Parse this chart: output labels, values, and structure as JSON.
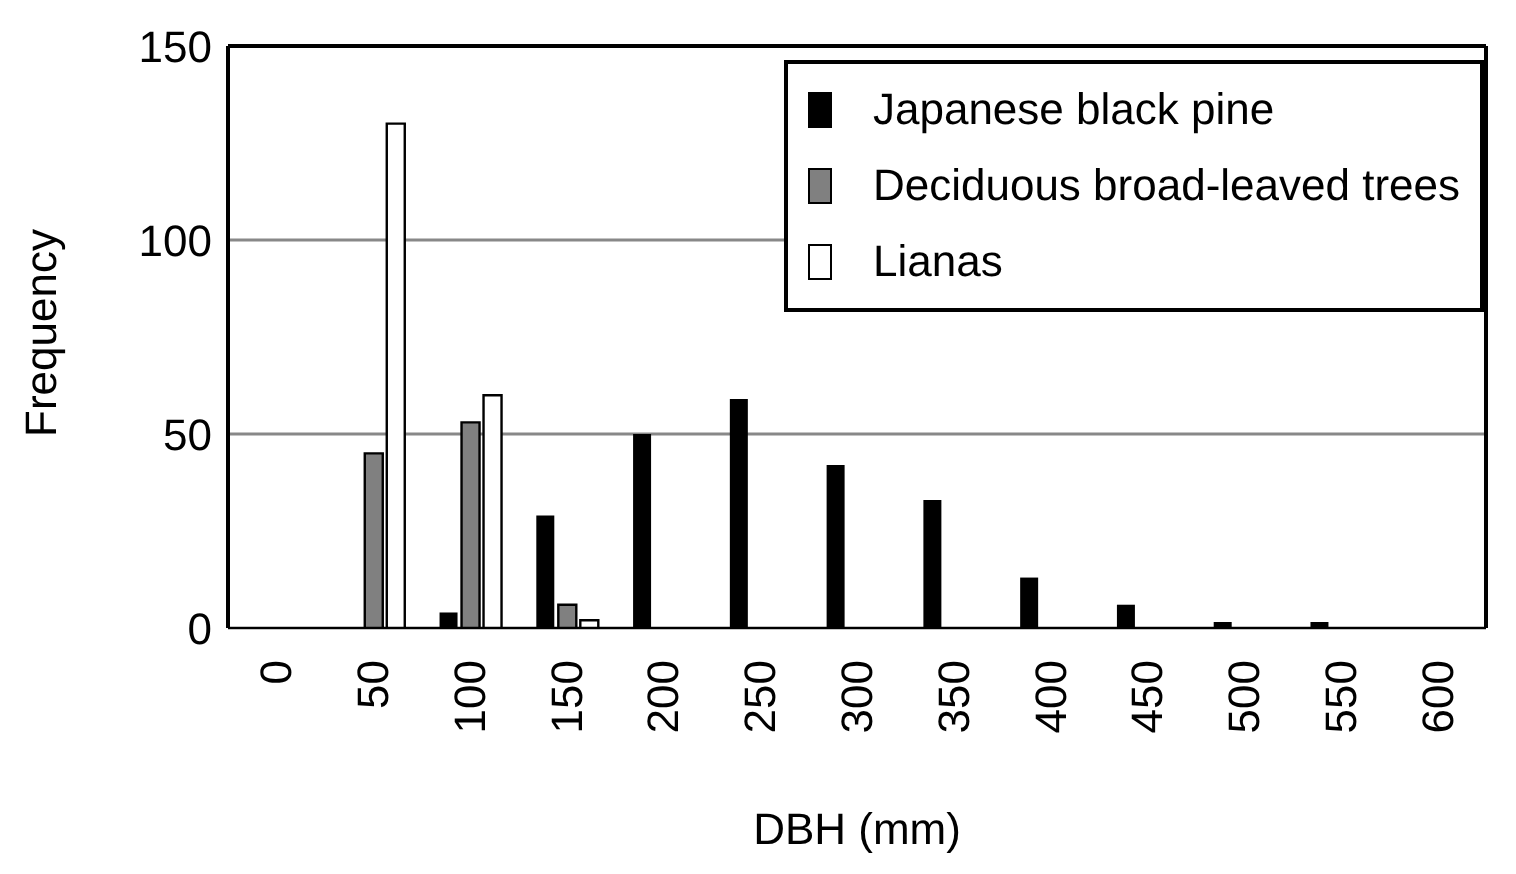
{
  "chart_data": {
    "type": "bar",
    "xlabel": "DBH (mm)",
    "ylabel": "Frequency",
    "categories": [
      "0",
      "50",
      "100",
      "150",
      "200",
      "250",
      "300",
      "350",
      "400",
      "450",
      "500",
      "550",
      "600"
    ],
    "series": [
      {
        "name": "Japanese black pine",
        "color": "#000000",
        "values": [
          0,
          0,
          4,
          29,
          50,
          59,
          42,
          33,
          13,
          6,
          1,
          1,
          0
        ]
      },
      {
        "name": "Deciduous broad-leaved trees",
        "color": "#808080",
        "values": [
          0,
          45,
          53,
          6,
          0,
          0,
          0,
          0,
          0,
          0,
          0,
          0,
          0
        ]
      },
      {
        "name": "Lianas",
        "color": "#ffffff",
        "values": [
          0,
          130,
          60,
          2,
          0,
          0,
          0,
          0,
          0,
          0,
          0,
          0,
          0
        ]
      }
    ],
    "ylim": [
      0,
      150
    ],
    "yticks": [
      0,
      50,
      100,
      150
    ],
    "grid": "y",
    "legend": "top right"
  }
}
